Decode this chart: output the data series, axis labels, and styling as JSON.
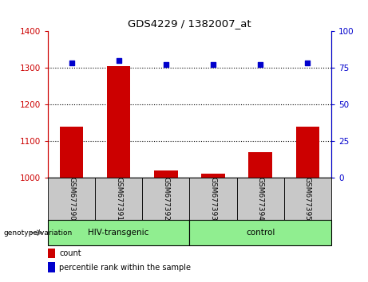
{
  "title": "GDS4229 / 1382007_at",
  "samples": [
    "GSM677390",
    "GSM677391",
    "GSM677392",
    "GSM677393",
    "GSM677394",
    "GSM677395"
  ],
  "counts": [
    1140,
    1305,
    1020,
    1010,
    1070,
    1140
  ],
  "percentiles": [
    78,
    80,
    77,
    77,
    77,
    78
  ],
  "ylim_left": [
    1000,
    1400
  ],
  "ylim_right": [
    0,
    100
  ],
  "yticks_left": [
    1000,
    1100,
    1200,
    1300,
    1400
  ],
  "yticks_right": [
    0,
    25,
    50,
    75,
    100
  ],
  "bar_color": "#CC0000",
  "scatter_color": "#0000CC",
  "bar_width": 0.5,
  "background_plot": "#FFFFFF",
  "background_xtick": "#C8C8C8",
  "group_color": "#90EE90",
  "genotype_label": "genotype/variation",
  "legend_count": "count",
  "legend_percentile": "percentile rank within the sample",
  "gridline_color": "#000000",
  "gridline_vals": [
    1100,
    1200,
    1300
  ]
}
